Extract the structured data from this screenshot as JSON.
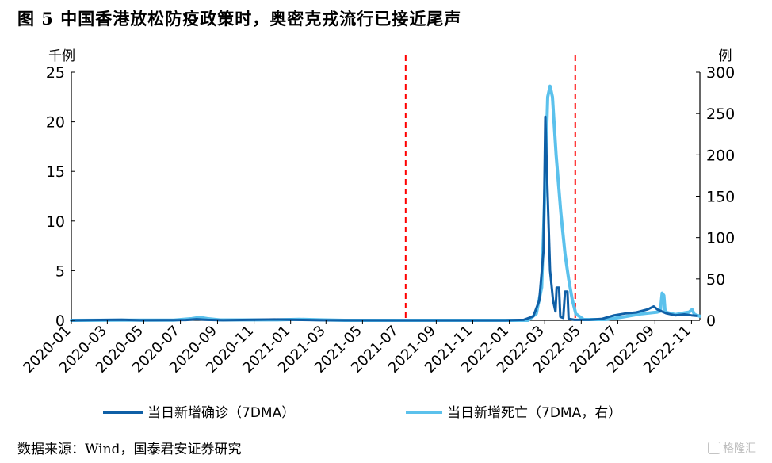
{
  "figure": {
    "title": "图 5 中国香港放松防疫政策时，奥密克戎流行已接近尾声",
    "source": "数据来源：Wind，国泰君安证券研究",
    "watermark": "格隆汇"
  },
  "chart_data": {
    "type": "line",
    "y_left": {
      "unit_label": "千例",
      "lim": [
        0,
        25
      ],
      "ticks": [
        0,
        5,
        10,
        15,
        20,
        25
      ]
    },
    "y_right": {
      "unit_label": "例",
      "lim": [
        0,
        300
      ],
      "ticks": [
        0,
        50,
        100,
        150,
        200,
        250,
        300
      ]
    },
    "x_axis": {
      "tick_labels": [
        "2020-01",
        "2020-03",
        "2020-05",
        "2020-07",
        "2020-09",
        "2020-11",
        "2021-01",
        "2021-03",
        "2021-05",
        "2021-07",
        "2021-09",
        "2021-11",
        "2022-01",
        "2022-03",
        "2022-05",
        "2022-07",
        "2022-09",
        "2022-11"
      ],
      "range": [
        "2020-01-01",
        "2022-11-15"
      ]
    },
    "vlines": [
      {
        "date": "2021-07-12",
        "color": "#ff0000",
        "style": "dashed"
      },
      {
        "date": "2022-04-21",
        "color": "#ff0000",
        "style": "dashed"
      }
    ],
    "legend": {
      "position": "bottom"
    },
    "series": [
      {
        "name": "当日新增确诊（7DMA）",
        "axis": "left",
        "color": "#0f5fa6",
        "points": [
          [
            "2020-01-01",
            0
          ],
          [
            "2020-03-25",
            0.06
          ],
          [
            "2020-04-25",
            0.01
          ],
          [
            "2020-07-10",
            0.03
          ],
          [
            "2020-07-28",
            0.11
          ],
          [
            "2020-08-15",
            0.05
          ],
          [
            "2020-09-10",
            0.01
          ],
          [
            "2020-12-05",
            0.09
          ],
          [
            "2021-01-10",
            0.05
          ],
          [
            "2021-02-25",
            0.01
          ],
          [
            "2021-07-12",
            0
          ],
          [
            "2021-12-25",
            0
          ],
          [
            "2022-01-25",
            0.05
          ],
          [
            "2022-02-10",
            0.4
          ],
          [
            "2022-02-20",
            2.0
          ],
          [
            "2022-02-27",
            7.0
          ],
          [
            "2022-03-02",
            20.5
          ],
          [
            "2022-03-06",
            12.5
          ],
          [
            "2022-03-10",
            5.0
          ],
          [
            "2022-03-15",
            2.0
          ],
          [
            "2022-03-19",
            0.9
          ],
          [
            "2022-03-21",
            3.3
          ],
          [
            "2022-03-25",
            3.3
          ],
          [
            "2022-03-27",
            0.35
          ],
          [
            "2022-04-01",
            0.25
          ],
          [
            "2022-04-04",
            2.9
          ],
          [
            "2022-04-08",
            2.9
          ],
          [
            "2022-04-10",
            0.15
          ],
          [
            "2022-04-20",
            0.05
          ],
          [
            "2022-05-15",
            0.06
          ],
          [
            "2022-06-05",
            0.15
          ],
          [
            "2022-06-25",
            0.5
          ],
          [
            "2022-07-15",
            0.7
          ],
          [
            "2022-08-01",
            0.8
          ],
          [
            "2022-08-20",
            1.1
          ],
          [
            "2022-08-30",
            1.4
          ],
          [
            "2022-09-05",
            1.1
          ],
          [
            "2022-09-20",
            0.7
          ],
          [
            "2022-10-05",
            0.5
          ],
          [
            "2022-10-20",
            0.6
          ],
          [
            "2022-11-01",
            0.5
          ],
          [
            "2022-11-10",
            0.45
          ]
        ]
      },
      {
        "name": "当日新增死亡（7DMA，右）",
        "axis": "right",
        "color": "#5bc1ec",
        "points": [
          [
            "2020-01-01",
            0
          ],
          [
            "2020-03-20",
            0.2
          ],
          [
            "2020-06-20",
            0.2
          ],
          [
            "2020-07-20",
            2.0
          ],
          [
            "2020-08-02",
            3.5
          ],
          [
            "2020-08-15",
            2.0
          ],
          [
            "2020-09-05",
            0.5
          ],
          [
            "2020-12-10",
            0.6
          ],
          [
            "2021-01-15",
            1.2
          ],
          [
            "2021-02-20",
            0.6
          ],
          [
            "2021-04-01",
            0
          ],
          [
            "2022-02-01",
            0
          ],
          [
            "2022-02-15",
            8
          ],
          [
            "2022-02-24",
            40
          ],
          [
            "2022-03-01",
            150
          ],
          [
            "2022-03-06",
            270
          ],
          [
            "2022-03-10",
            283
          ],
          [
            "2022-03-14",
            270
          ],
          [
            "2022-03-20",
            200
          ],
          [
            "2022-03-28",
            130
          ],
          [
            "2022-04-04",
            80
          ],
          [
            "2022-04-10",
            50
          ],
          [
            "2022-04-16",
            25
          ],
          [
            "2022-04-22",
            8
          ],
          [
            "2022-05-05",
            1
          ],
          [
            "2022-06-10",
            1
          ],
          [
            "2022-07-10",
            4
          ],
          [
            "2022-08-10",
            8
          ],
          [
            "2022-09-05",
            10
          ],
          [
            "2022-09-10",
            11
          ],
          [
            "2022-09-13",
            33
          ],
          [
            "2022-09-16",
            30
          ],
          [
            "2022-09-18",
            10
          ],
          [
            "2022-10-05",
            7
          ],
          [
            "2022-10-20",
            9
          ],
          [
            "2022-10-28",
            10
          ],
          [
            "2022-11-02",
            13
          ],
          [
            "2022-11-06",
            7
          ],
          [
            "2022-11-15",
            5
          ]
        ]
      }
    ]
  }
}
